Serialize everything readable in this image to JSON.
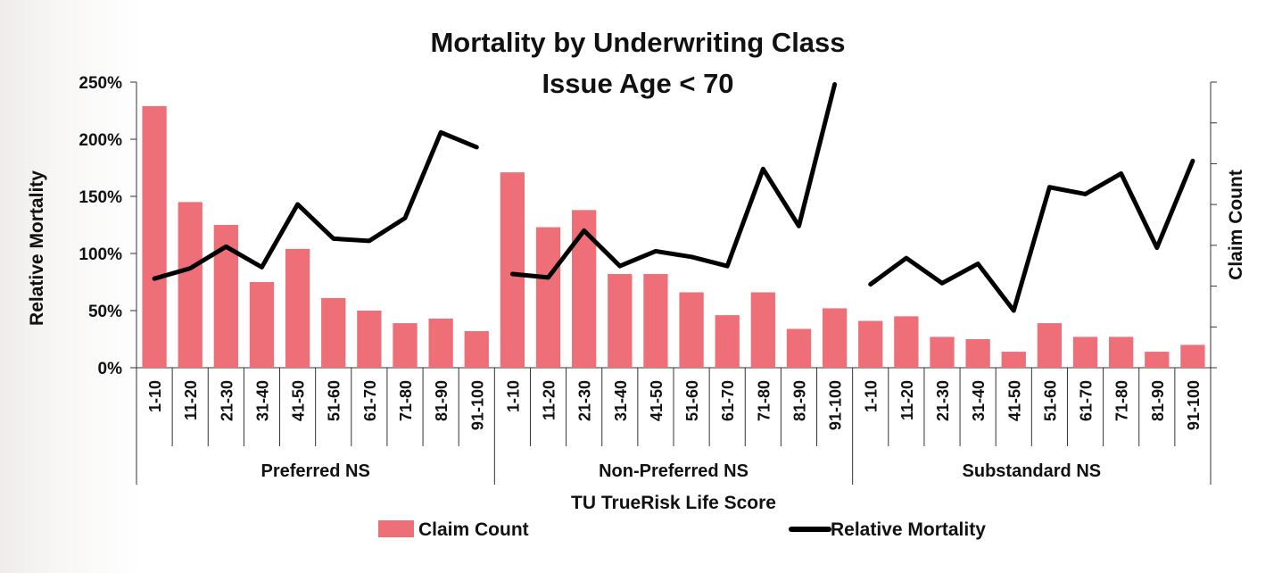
{
  "chart_data": {
    "type": "bar+line",
    "title": [
      "Mortality by Underwriting Class",
      "Issue Age < 70"
    ],
    "xlabel": "TU TrueRisk Life Score",
    "ylabel": "Relative Mortality",
    "y2label": "Claim Count",
    "ylim": [
      0,
      2.5
    ],
    "yticks": [
      "0%",
      "50%",
      "100%",
      "150%",
      "200%",
      "250%"
    ],
    "groups": [
      {
        "name": "Preferred NS",
        "categories": [
          "1-10",
          "11-20",
          "21-30",
          "31-40",
          "41-50",
          "51-60",
          "61-70",
          "71-80",
          "81-90",
          "91-100"
        ],
        "claim_count_scaled": [
          2.29,
          1.45,
          1.25,
          0.75,
          1.04,
          0.61,
          0.5,
          0.39,
          0.43,
          0.32
        ],
        "relative_mortality": [
          0.78,
          0.87,
          1.06,
          0.88,
          1.43,
          1.13,
          1.11,
          1.31,
          2.06,
          1.93
        ]
      },
      {
        "name": "Non-Preferred NS",
        "categories": [
          "1-10",
          "11-20",
          "21-30",
          "31-40",
          "41-50",
          "51-60",
          "61-70",
          "71-80",
          "81-90",
          "91-100"
        ],
        "claim_count_scaled": [
          1.71,
          1.23,
          1.38,
          0.82,
          0.82,
          0.66,
          0.46,
          0.66,
          0.34,
          0.52
        ],
        "relative_mortality": [
          0.82,
          0.79,
          1.2,
          0.89,
          1.02,
          0.97,
          0.89,
          1.74,
          1.24,
          2.48
        ]
      },
      {
        "name": "Substandard NS",
        "categories": [
          "1-10",
          "11-20",
          "21-30",
          "31-40",
          "41-50",
          "51-60",
          "61-70",
          "71-80",
          "81-90",
          "91-100"
        ],
        "claim_count_scaled": [
          0.41,
          0.45,
          0.27,
          0.25,
          0.14,
          0.39,
          0.27,
          0.27,
          0.14,
          0.2
        ],
        "relative_mortality": [
          0.73,
          0.96,
          0.74,
          0.91,
          0.5,
          1.58,
          1.52,
          1.7,
          1.05,
          1.81
        ]
      }
    ],
    "series": [
      {
        "name": "Claim Count",
        "kind": "bar",
        "color": "#ee6f77"
      },
      {
        "name": "Relative Mortality",
        "kind": "line",
        "color": "#000000"
      }
    ],
    "legend": "bottom"
  }
}
